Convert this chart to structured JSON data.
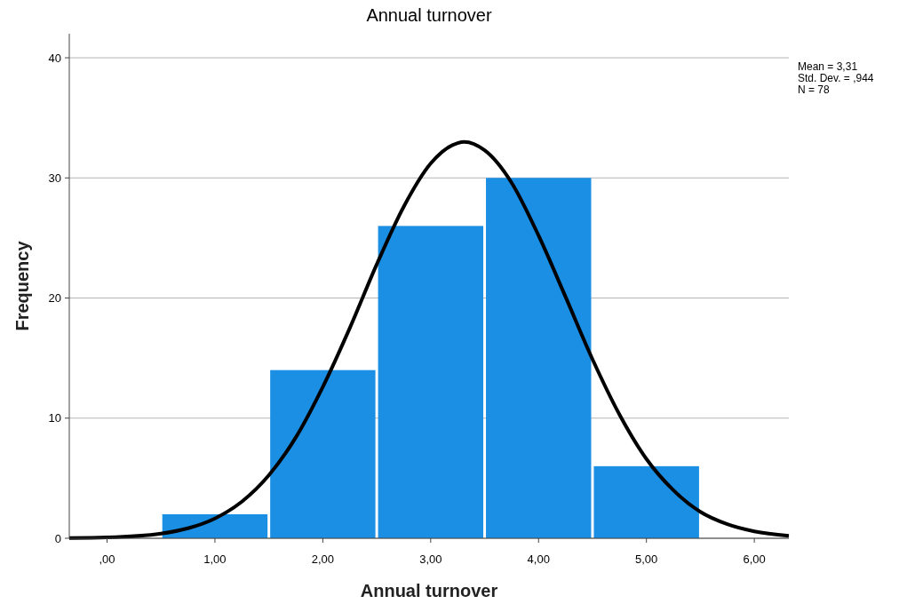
{
  "chart_data": {
    "type": "histogram",
    "title": "Annual turnover",
    "xlabel": "Annual turnover",
    "ylabel": "Frequency",
    "bins": [
      0.5,
      1.5,
      2.5,
      3.5,
      4.5,
      5.5
    ],
    "values": [
      2,
      14,
      26,
      30,
      6
    ],
    "color": "#1a8fe3",
    "series": [
      {
        "type": "line",
        "color": "#000000",
        "x": [
          -0.35,
          0,
          0.5,
          0.75,
          1,
          1.25,
          1.5,
          1.75,
          2,
          2.25,
          2.5,
          2.75,
          3,
          3.25,
          3.31,
          3.5,
          3.75,
          4,
          4.25,
          4.5,
          4.75,
          5,
          5.25,
          5.5,
          5.75,
          6,
          6.32
        ],
        "values": [
          0.02,
          0.07,
          0.39,
          0.83,
          1.65,
          3.05,
          5.25,
          8.4,
          12.6,
          17.5,
          22.8,
          27.6,
          31.2,
          32.9,
          33,
          32.3,
          29.6,
          25.2,
          20.1,
          14.9,
          10.3,
          6.6,
          4,
          2.2,
          1.17,
          0.57,
          0.2
        ]
      }
    ],
    "xlim": [
      -0.35,
      6.32
    ],
    "xticks": [
      {
        "value": 0,
        "label": ",00"
      },
      {
        "value": 1,
        "label": "1,00"
      },
      {
        "value": 2,
        "label": "2,00"
      },
      {
        "value": 3,
        "label": "3,00"
      },
      {
        "value": 4,
        "label": "4,00"
      },
      {
        "value": 5,
        "label": "5,00"
      },
      {
        "value": 6,
        "label": "6,00"
      }
    ],
    "ylim": [
      0,
      42
    ],
    "yticks": [
      0,
      10,
      20,
      30,
      40
    ],
    "grid": "y",
    "annotations": [
      "Mean = 3,31",
      "Std. Dev. = ,944",
      "N = 78"
    ]
  }
}
